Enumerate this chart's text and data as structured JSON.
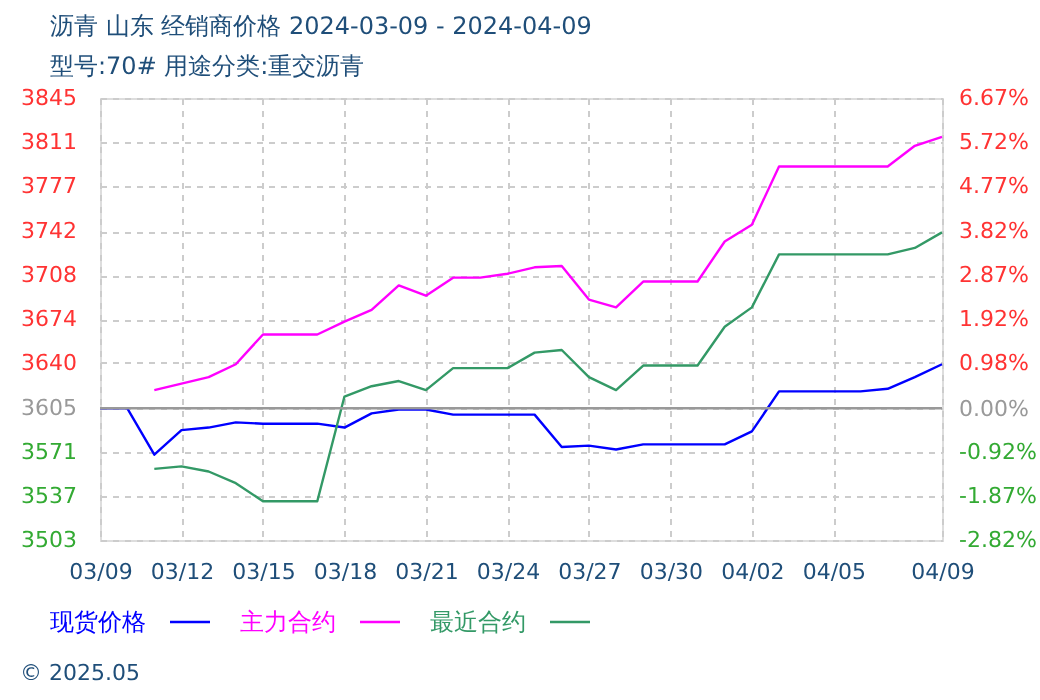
{
  "chart_data": {
    "type": "line",
    "title": "沥青  山东 经销商价格 2024-03-09 - 2024-04-09",
    "subtitle": "型号:70# 用途分类:重交沥青",
    "annotations": [
      "© 2025.05"
    ],
    "x": [
      "2024-03-09",
      "2024-03-10",
      "2024-03-11",
      "2024-03-12",
      "2024-03-13",
      "2024-03-14",
      "2024-03-15",
      "2024-03-16",
      "2024-03-17",
      "2024-03-18",
      "2024-03-19",
      "2024-03-20",
      "2024-03-21",
      "2024-03-22",
      "2024-03-23",
      "2024-03-24",
      "2024-03-25",
      "2024-03-26",
      "2024-03-27",
      "2024-03-28",
      "2024-03-29",
      "2024-03-30",
      "2024-03-31",
      "2024-04-01",
      "2024-04-02",
      "2024-04-03",
      "2024-04-04",
      "2024-04-05",
      "2024-04-06",
      "2024-04-07",
      "2024-04-08",
      "2024-04-09"
    ],
    "series": [
      {
        "name": "现货价格",
        "color": "#0000ff",
        "values": [
          3605,
          3605,
          3569,
          3588,
          3590,
          3594,
          3593,
          3593,
          3593,
          3590,
          3601,
          3604,
          3604,
          3600,
          3600,
          3600,
          3600,
          3575,
          3576,
          3573,
          3577,
          3577,
          3577,
          3577,
          3587,
          3618,
          3618,
          3618,
          3618,
          3620,
          3629,
          3639
        ]
      },
      {
        "name": "主力合约",
        "color": "#ff00ff",
        "values": [
          null,
          null,
          3619,
          3624,
          3629,
          3639,
          3662,
          3662,
          3662,
          3672,
          3681,
          3700,
          3692,
          3706,
          3706,
          3709,
          3714,
          3715,
          3689,
          3683,
          3703,
          3703,
          3703,
          3734,
          3747,
          3792,
          3792,
          3792,
          3792,
          3792,
          3808,
          3815
        ]
      },
      {
        "name": "最近合约",
        "color": "#339966",
        "values": [
          null,
          null,
          3558,
          3560,
          3556,
          3547,
          3533,
          3533,
          3533,
          3614,
          3622,
          3626,
          3619,
          3636,
          3636,
          3636,
          3648,
          3650,
          3629,
          3619,
          3638,
          3638,
          3638,
          3668,
          3683,
          3724,
          3724,
          3724,
          3724,
          3724,
          3729,
          3741
        ]
      }
    ],
    "xlim": [
      "2024-03-09",
      "2024-04-09"
    ],
    "xticks": [
      {
        "value": "2024-03-09",
        "label": "03/09"
      },
      {
        "value": "2024-03-12",
        "label": "03/12"
      },
      {
        "value": "2024-03-15",
        "label": "03/15"
      },
      {
        "value": "2024-03-18",
        "label": "03/18"
      },
      {
        "value": "2024-03-21",
        "label": "03/21"
      },
      {
        "value": "2024-03-24",
        "label": "03/24"
      },
      {
        "value": "2024-03-27",
        "label": "03/27"
      },
      {
        "value": "2024-03-30",
        "label": "03/30"
      },
      {
        "value": "2024-04-02",
        "label": "04/02"
      },
      {
        "value": "2024-04-05",
        "label": "04/05"
      },
      {
        "value": "2024-04-09",
        "label": "04/09"
      }
    ],
    "ylim": [
      3503,
      3845
    ],
    "yticks": [
      3503,
      3537,
      3571,
      3605,
      3640,
      3674,
      3708,
      3742,
      3777,
      3811,
      3845
    ],
    "y2lim": [
      -2.82,
      6.67
    ],
    "y2ticks": [
      {
        "value": -2.82,
        "label": "-2.82%"
      },
      {
        "value": -1.87,
        "label": "-1.87%"
      },
      {
        "value": -0.92,
        "label": "-0.92%"
      },
      {
        "value": 0,
        "label": "0.00%"
      },
      {
        "value": 0.98,
        "label": "0.98%"
      },
      {
        "value": 1.92,
        "label": "1.92%"
      },
      {
        "value": 2.87,
        "label": "2.87%"
      },
      {
        "value": 3.82,
        "label": "3.82%"
      },
      {
        "value": 4.77,
        "label": "4.77%"
      },
      {
        "value": 5.72,
        "label": "5.72%"
      },
      {
        "value": 6.67,
        "label": "6.67%"
      }
    ],
    "ref_lines": [
      {
        "axis": "y",
        "value": 3605,
        "color": "#999999"
      }
    ],
    "grid": true,
    "legend": "bottom",
    "marker": "none",
    "line_style": "solid"
  }
}
